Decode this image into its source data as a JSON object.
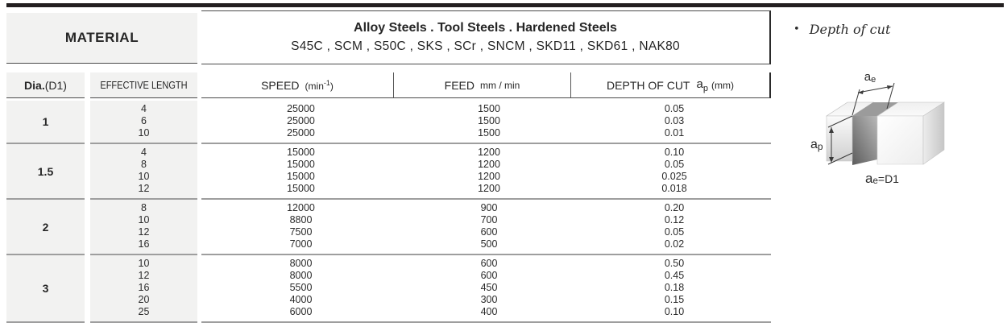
{
  "header": {
    "material_label": "MATERIAL",
    "steels_title": "Alloy  Steels . Tool Steels . Hardened Steels",
    "steels_list": "S45C , SCM , S50C , SKS , SCr , SNCM , SKD11 , SKD61 , NAK80"
  },
  "columns": {
    "dia_label": "Dia.",
    "dia_unit": "(D1)",
    "effective_length_label": "EFFECTIVE LENGTH",
    "speed_label": "SPEED",
    "speed_unit_open": "(min",
    "speed_unit_sup": "-1",
    "speed_unit_close": ")",
    "feed_label": "FEED",
    "feed_unit": "mm / min",
    "depth_label": "DEPTH OF CUT",
    "depth_symbol": "a",
    "depth_symbol_sub": "p",
    "depth_unit": "(mm)"
  },
  "table": {
    "groups": [
      {
        "dia": "1",
        "rows": [
          {
            "length": "4",
            "speed": "25000",
            "feed": "1500",
            "depth": "0.05"
          },
          {
            "length": "6",
            "speed": "25000",
            "feed": "1500",
            "depth": "0.03"
          },
          {
            "length": "10",
            "speed": "25000",
            "feed": "1500",
            "depth": "0.01"
          }
        ]
      },
      {
        "dia": "1.5",
        "rows": [
          {
            "length": "4",
            "speed": "15000",
            "feed": "1200",
            "depth": "0.10"
          },
          {
            "length": "8",
            "speed": "15000",
            "feed": "1200",
            "depth": "0.05"
          },
          {
            "length": "10",
            "speed": "15000",
            "feed": "1200",
            "depth": "0.025"
          },
          {
            "length": "12",
            "speed": "15000",
            "feed": "1200",
            "depth": "0.018"
          }
        ]
      },
      {
        "dia": "2",
        "rows": [
          {
            "length": "8",
            "speed": "12000",
            "feed": "900",
            "depth": "0.20"
          },
          {
            "length": "10",
            "speed": "8800",
            "feed": "700",
            "depth": "0.12"
          },
          {
            "length": "12",
            "speed": "7500",
            "feed": "600",
            "depth": "0.05"
          },
          {
            "length": "16",
            "speed": "7000",
            "feed": "500",
            "depth": "0.02"
          }
        ]
      },
      {
        "dia": "3",
        "rows": [
          {
            "length": "10",
            "speed": "8000",
            "feed": "600",
            "depth": "0.50"
          },
          {
            "length": "12",
            "speed": "8000",
            "feed": "600",
            "depth": "0.45"
          },
          {
            "length": "16",
            "speed": "5500",
            "feed": "450",
            "depth": "0.18"
          },
          {
            "length": "20",
            "speed": "4000",
            "feed": "300",
            "depth": "0.15"
          },
          {
            "length": "25",
            "speed": "6000",
            "feed": "400",
            "depth": "0.10"
          }
        ]
      }
    ]
  },
  "side_panel": {
    "bullet": "•",
    "note": "Depth of cut",
    "ae_main": "a",
    "ae_sub": "e",
    "ap_main": "a",
    "ap_sub": "p",
    "formula_main": "a",
    "formula_sub": "e",
    "formula_rest": "=D1"
  },
  "colors": {
    "top_bar": "#231f20",
    "shaded_cell": "#f2f2f1",
    "rule_dark": "#4a4a4a",
    "rule_gray": "#9e9e9e"
  }
}
